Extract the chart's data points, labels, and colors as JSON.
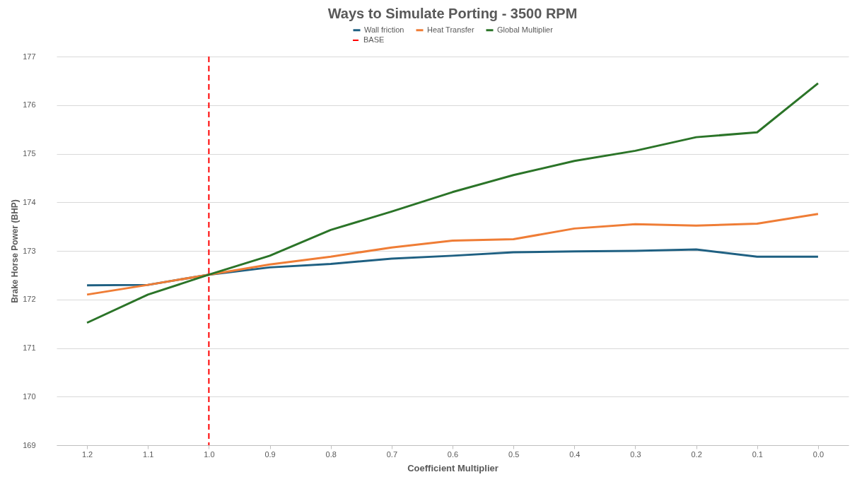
{
  "chart_data": {
    "type": "line",
    "title": "Ways to Simulate Porting - 3500 RPM",
    "xlabel": "Coefficient Multiplier",
    "ylabel": "Brake Horse Power (BHP)",
    "categories": [
      "1.2",
      "1.1",
      "1.0",
      "0.9",
      "0.8",
      "0.7",
      "0.6",
      "0.5",
      "0.4",
      "0.3",
      "0.2",
      "0.1",
      "0.0"
    ],
    "series": [
      {
        "name": "Wall friction",
        "color": "#1f6082",
        "values": [
          172.29,
          172.3,
          172.51,
          172.66,
          172.73,
          172.84,
          172.9,
          172.97,
          172.99,
          173.0,
          173.03,
          172.88,
          172.88
        ]
      },
      {
        "name": "Heat Transfer",
        "color": "#ef7d36",
        "values": [
          172.1,
          172.3,
          172.51,
          172.72,
          172.88,
          173.07,
          173.21,
          173.24,
          173.46,
          173.55,
          173.52,
          173.56,
          173.76
        ]
      },
      {
        "name": "Global Multiplier",
        "color": "#2b7428",
        "values": [
          171.52,
          172.1,
          172.51,
          172.9,
          173.43,
          173.81,
          174.21,
          174.56,
          174.85,
          175.06,
          175.34,
          175.44,
          176.45
        ]
      }
    ],
    "ref_lines": [
      {
        "axis": "x",
        "value": "1.0",
        "label": "BASE",
        "color": "#ff0000",
        "line_style": "dashed"
      }
    ],
    "ylim": [
      169,
      177
    ],
    "yticks": [
      169,
      170,
      171,
      172,
      173,
      174,
      175,
      176,
      177
    ],
    "grid": "y",
    "legend": "top",
    "marker": "none",
    "line_style": "solid"
  }
}
